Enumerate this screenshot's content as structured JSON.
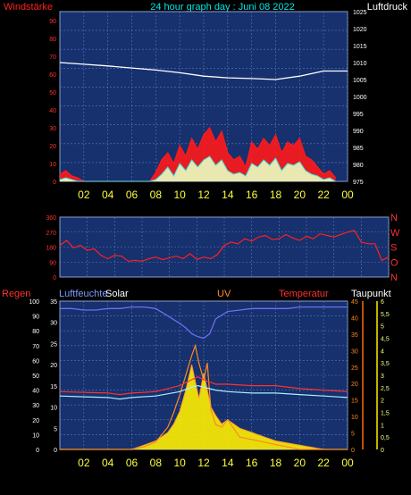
{
  "header": {
    "left_label": "Windstärke",
    "title": "24 hour graph day : Juni 08 2022",
    "right_label": "Luftdruck"
  },
  "colors": {
    "plot_bg": "#17306e",
    "grid": "#5a78b8",
    "wind_speed": "#ff1a1a",
    "wind_gust": "#e8ffc0",
    "pressure": "#ffffff",
    "direction": "#ff2020",
    "humidity": "#6e6ef0",
    "solar": "#ffee00",
    "uv": "#ff8a20",
    "temperature": "#ff3030",
    "dewpoint": "#a8f0ff",
    "rain": "#ff7000"
  },
  "chart_data": [
    {
      "type": "area",
      "panel": "wind_pressure",
      "left_axis": {
        "label": "Windstärke",
        "ticks": [
          0,
          10,
          20,
          30,
          40,
          50,
          60,
          70,
          80,
          90
        ],
        "ylim": [
          0,
          95
        ]
      },
      "right_axis": {
        "label": "Luftdruck",
        "ticks": [
          975,
          980,
          985,
          990,
          995,
          1000,
          1005,
          1010,
          1015,
          1020,
          1025
        ],
        "ylim": [
          975,
          1025
        ]
      },
      "x_ticks": [
        "02",
        "04",
        "06",
        "08",
        "10",
        "12",
        "14",
        "16",
        "18",
        "20",
        "22",
        "00"
      ],
      "grid": true,
      "series": [
        {
          "name": "Luftdruck",
          "axis": "right",
          "x": [
            0,
            2,
            4,
            6,
            8,
            10,
            12,
            14,
            16,
            18,
            20,
            22,
            24
          ],
          "values": [
            1010,
            1009.5,
            1009,
            1008.4,
            1007.8,
            1007,
            1006,
            1005.5,
            1005.3,
            1005,
            1006,
            1007.5,
            1007.5
          ]
        },
        {
          "name": "Windböen",
          "axis": "left",
          "x": [
            0,
            0.5,
            1,
            1.5,
            2,
            2.5,
            3,
            3.5,
            4,
            4.5,
            5,
            5.5,
            6,
            6.5,
            7,
            7.5,
            8,
            8.5,
            9,
            9.5,
            10,
            10.5,
            11,
            11.5,
            12,
            12.5,
            13,
            13.5,
            14,
            14.5,
            15,
            15.5,
            16,
            16.5,
            17,
            17.5,
            18,
            18.5,
            19,
            19.5,
            20,
            20.5,
            21,
            21.5,
            22,
            22.5,
            23
          ],
          "values": [
            4,
            6,
            3,
            2,
            0,
            0,
            0,
            0,
            0,
            0,
            0,
            0,
            0,
            0,
            0,
            0,
            5,
            12,
            16,
            10,
            20,
            14,
            24,
            18,
            26,
            30,
            22,
            28,
            16,
            12,
            14,
            8,
            22,
            18,
            24,
            20,
            26,
            16,
            22,
            20,
            24,
            14,
            12,
            8,
            4,
            6,
            2
          ]
        },
        {
          "name": "Windgeschwindigkeit",
          "axis": "left",
          "x": [
            0,
            0.5,
            1,
            1.5,
            2,
            2.5,
            3,
            3.5,
            4,
            4.5,
            5,
            5.5,
            6,
            6.5,
            7,
            7.5,
            8,
            8.5,
            9,
            9.5,
            10,
            10.5,
            11,
            11.5,
            12,
            12.5,
            13,
            13.5,
            14,
            14.5,
            15,
            15.5,
            16,
            16.5,
            17,
            17.5,
            18,
            18.5,
            19,
            19.5,
            20,
            20.5,
            21,
            21.5,
            22,
            22.5,
            23
          ],
          "values": [
            1,
            2,
            1,
            0,
            0,
            0,
            0,
            0,
            0,
            0,
            0,
            0,
            0,
            0,
            0,
            0,
            1,
            4,
            8,
            3,
            10,
            6,
            12,
            8,
            12,
            14,
            9,
            12,
            6,
            4,
            5,
            3,
            10,
            8,
            12,
            9,
            13,
            6,
            10,
            9,
            11,
            6,
            4,
            3,
            1,
            2,
            0
          ]
        }
      ]
    },
    {
      "type": "line",
      "panel": "wind_direction",
      "left_axis": {
        "ticks": [
          0,
          90,
          180,
          270,
          360
        ],
        "ylim": [
          0,
          360
        ]
      },
      "right_axis": {
        "ticks": [
          "N",
          "W",
          "S",
          "O",
          "N"
        ]
      },
      "grid": true,
      "series": [
        {
          "name": "Windrichtung",
          "x": [
            0,
            0.5,
            1,
            1.5,
            2,
            2.5,
            3,
            3.5,
            4,
            4.5,
            5,
            5.5,
            6,
            6.5,
            7,
            7.5,
            8,
            8.5,
            9,
            9.5,
            10,
            10.5,
            11,
            11.5,
            12,
            12.5,
            13,
            13.5,
            14,
            14.5,
            15,
            15.5,
            16,
            16.5,
            17,
            17.5,
            18,
            18.5,
            19,
            19.5,
            20,
            20.5,
            21,
            21.5,
            22,
            22.5,
            23,
            23.5,
            24
          ],
          "values": [
            190,
            220,
            175,
            190,
            160,
            170,
            130,
            110,
            130,
            125,
            95,
            100,
            95,
            110,
            120,
            105,
            115,
            125,
            110,
            140,
            105,
            120,
            110,
            135,
            190,
            210,
            200,
            230,
            215,
            240,
            250,
            225,
            230,
            255,
            235,
            220,
            245,
            230,
            260,
            250,
            240,
            255,
            270,
            280,
            210,
            200,
            200,
            100,
            120
          ]
        }
      ]
    },
    {
      "type": "line",
      "panel": "rain_humidity_solar_uv_temp_dew",
      "labels": {
        "rain": "Regen",
        "humidity": "Luftfeuchte",
        "solar": "Solar",
        "uv": "UV",
        "temperature": "Temperatur",
        "dewpoint": "Taupunkt"
      },
      "left_axis_outer": {
        "label": "Regen",
        "ticks": [
          0,
          10,
          20,
          30,
          40,
          50,
          60,
          70,
          80,
          90,
          100
        ],
        "ylim": [
          0,
          100
        ]
      },
      "left_axis_inner": {
        "label": "Luftfeuchte",
        "ticks": [
          0,
          5,
          10,
          15,
          20,
          25,
          30,
          35
        ],
        "ylim": [
          0,
          35
        ]
      },
      "right_axis_inner": {
        "ticks": [
          0,
          5,
          10,
          15,
          20,
          25,
          30,
          35,
          40,
          45
        ],
        "ylim": [
          0,
          45
        ]
      },
      "right_axis_outer": {
        "label": "Taupunkt",
        "ticks": [
          "0",
          "0,5",
          "1",
          "1,5",
          "2",
          "2,5",
          "3",
          "3,5",
          "4",
          "4,5",
          "5",
          "5,5",
          "6"
        ],
        "ylim": [
          0,
          6
        ]
      },
      "x_ticks": [
        "02",
        "04",
        "06",
        "08",
        "10",
        "12",
        "14",
        "16",
        "18",
        "20",
        "22",
        "00"
      ],
      "grid": true,
      "series": [
        {
          "name": "Luftfeuchte",
          "x": [
            0,
            1,
            2,
            3,
            4,
            5,
            6,
            7,
            8,
            9,
            10,
            10.5,
            11,
            11.5,
            12,
            12.5,
            13,
            14,
            15,
            16,
            17,
            18,
            19,
            20,
            21,
            22,
            23,
            24
          ],
          "values": [
            95,
            95,
            94,
            94,
            95,
            95,
            96,
            96,
            95,
            90,
            85,
            82,
            78,
            76,
            75,
            78,
            88,
            93,
            94,
            95,
            95,
            95,
            95,
            96,
            96,
            96,
            96,
            96
          ]
        },
        {
          "name": "Temperatur",
          "x": [
            0,
            2,
            4,
            5,
            6,
            8,
            10,
            11,
            11.5,
            12,
            13,
            14,
            16,
            18,
            20,
            22,
            24
          ],
          "values": [
            39,
            38.5,
            38,
            37,
            38,
            39,
            43,
            47,
            49,
            47,
            44,
            44,
            43,
            43,
            41,
            40,
            39
          ]
        },
        {
          "name": "Taupunkt",
          "x": [
            0,
            2,
            4,
            5,
            6,
            8,
            10,
            11,
            11.5,
            12,
            13,
            14,
            16,
            18,
            20,
            22,
            24
          ],
          "values": [
            36,
            35.5,
            35,
            34,
            35,
            36,
            39,
            42,
            43,
            42,
            40,
            39,
            38,
            38,
            37,
            36,
            35
          ]
        },
        {
          "name": "UV",
          "x": [
            0,
            4,
            6,
            7,
            8,
            9,
            9.5,
            10,
            10.5,
            11,
            11.3,
            11.6,
            12,
            12.3,
            12.6,
            13,
            13.5,
            14,
            15,
            16,
            17,
            18,
            19,
            20,
            21,
            22,
            24
          ],
          "values": [
            0,
            0,
            0,
            0.1,
            0.3,
            0.9,
            1.5,
            2.2,
            3,
            3.8,
            4.2,
            3.5,
            2.8,
            3.5,
            1.6,
            1,
            0.9,
            1.2,
            0.5,
            0.4,
            0.3,
            0.2,
            0.1,
            0,
            0,
            0,
            0
          ]
        },
        {
          "name": "Solar",
          "x": [
            0,
            4,
            6,
            7,
            8,
            9,
            9.5,
            10,
            10.5,
            11,
            11.3,
            11.6,
            12,
            12.3,
            12.6,
            13,
            13.5,
            14,
            15,
            16,
            17,
            18,
            19,
            20,
            21,
            22,
            24
          ],
          "values": [
            0,
            0,
            0,
            1,
            2,
            4,
            6,
            9,
            14,
            20,
            16,
            12,
            18,
            14,
            10,
            8,
            6,
            7,
            5,
            4,
            3,
            2,
            1.5,
            1,
            0.5,
            0,
            0
          ]
        },
        {
          "name": "Regen",
          "x": [
            0,
            2,
            4,
            6,
            8,
            10,
            12,
            14,
            16,
            18,
            20,
            22,
            24
          ],
          "values": [
            0,
            0,
            0,
            0,
            0,
            0,
            0,
            0,
            0,
            0,
            0,
            0,
            0
          ]
        }
      ]
    }
  ]
}
